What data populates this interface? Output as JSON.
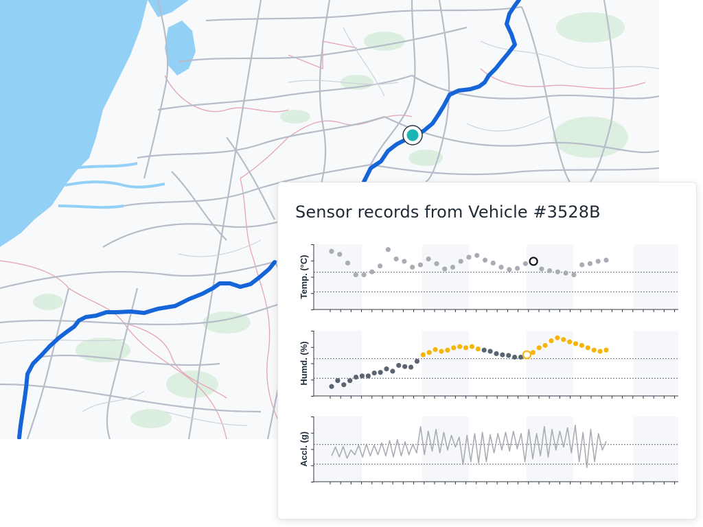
{
  "panel": {
    "title": "Sensor records from Vehicle #3528B"
  },
  "map": {
    "route_color": "#1565d8",
    "marker_color": "#1bb5b5",
    "water_color": "#93d0f5"
  },
  "chart_data": [
    {
      "type": "scatter",
      "ylabel": "Temp. (°C)",
      "color": "#a9adb3",
      "highlight_index": 25,
      "values": [
        0.95,
        0.9,
        0.75,
        0.55,
        0.55,
        0.6,
        0.7,
        0.98,
        0.82,
        0.78,
        0.68,
        0.72,
        0.82,
        0.74,
        0.65,
        0.68,
        0.78,
        0.85,
        0.88,
        0.8,
        0.75,
        0.68,
        0.64,
        0.66,
        0.74,
        0.78,
        0.65,
        0.62,
        0.6,
        0.58,
        0.55,
        0.72,
        0.74,
        0.78,
        0.8
      ]
    },
    {
      "type": "scatter",
      "ylabel": "Humd. (%)",
      "colors": [
        "#5b6572",
        "#f5b50b"
      ],
      "highlight_index": 25,
      "series_values": [
        0.12,
        0.22,
        0.15,
        0.22,
        0.28,
        0.3,
        0.3,
        0.35,
        0.36,
        0.42,
        0.38,
        0.48,
        0.46,
        0.45,
        0.55,
        0.66,
        0.7,
        0.75,
        0.72,
        0.74,
        0.78,
        0.8,
        0.78,
        0.8,
        0.76,
        0.74,
        0.72,
        0.68,
        0.66,
        0.65,
        0.62,
        0.62,
        0.66,
        0.7,
        0.78,
        0.82,
        0.9,
        0.95,
        0.92,
        0.88,
        0.85,
        0.82,
        0.78,
        0.74,
        0.72,
        0.74
      ],
      "yellow_ranges": [
        [
          15,
          24
        ],
        [
          32,
          45
        ]
      ]
    },
    {
      "type": "line",
      "ylabel": "Accl. (g)",
      "color": "#a9adb3",
      "values": [
        0.4,
        0.55,
        0.38,
        0.56,
        0.36,
        0.5,
        0.42,
        0.58,
        0.38,
        0.6,
        0.4,
        0.58,
        0.42,
        0.62,
        0.4,
        0.66,
        0.38,
        0.68,
        0.4,
        0.64,
        0.42,
        0.6,
        0.45,
        0.9,
        0.42,
        0.82,
        0.48,
        0.85,
        0.45,
        0.8,
        0.5,
        0.75,
        0.55,
        0.72,
        0.25,
        0.75,
        0.3,
        0.78,
        0.28,
        0.8,
        0.3,
        0.76,
        0.45,
        0.78,
        0.5,
        0.8,
        0.48,
        0.82,
        0.52,
        0.78,
        0.3,
        0.85,
        0.35,
        0.78,
        0.4,
        0.9,
        0.38,
        0.85,
        0.5,
        0.82,
        0.55,
        0.88,
        0.45,
        0.92,
        0.3,
        0.8,
        0.2,
        0.85,
        0.3,
        0.78,
        0.5,
        0.65
      ]
    }
  ]
}
